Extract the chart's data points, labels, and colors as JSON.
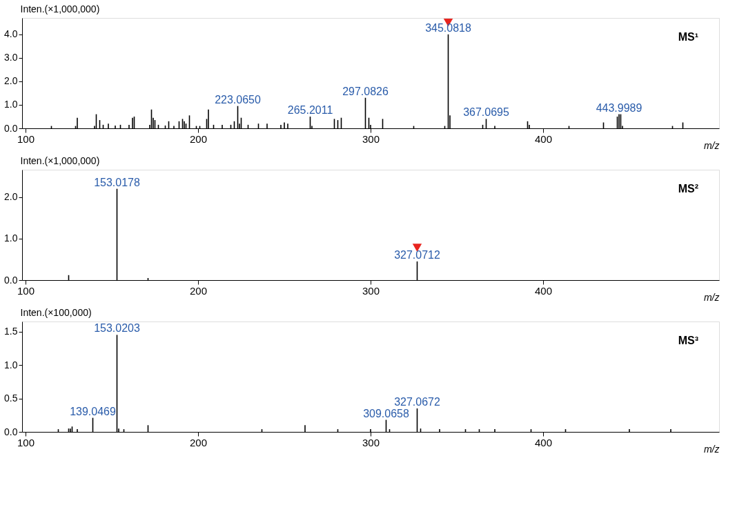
{
  "chart_data": [
    {
      "type": "bar",
      "ylabel": "Inten.(×1,000,000)",
      "xlabel": "m/z",
      "xlim": [
        100,
        500
      ],
      "xticks": [
        100,
        200,
        300,
        400
      ],
      "ylim": [
        0,
        4.7
      ],
      "yticks": [
        {
          "value": 0,
          "label": "0.0"
        },
        {
          "value": 1,
          "label": "1.0"
        },
        {
          "value": 2,
          "label": "2.0"
        },
        {
          "value": 3,
          "label": "3.0"
        },
        {
          "value": 4,
          "label": "4.0"
        }
      ],
      "grid": false,
      "series": [
        {
          "color": "#000000",
          "x": [
            115,
            129,
            130,
            140,
            141,
            143,
            145,
            148,
            152,
            155,
            160,
            162,
            163,
            172,
            173,
            174,
            175,
            177,
            181,
            183,
            186,
            189,
            191,
            192,
            193,
            195,
            199,
            201,
            205,
            206,
            209,
            214,
            219,
            221,
            223,
            224,
            225,
            229,
            235,
            240,
            248,
            250,
            252,
            265,
            266,
            279,
            281,
            283,
            297,
            299,
            300,
            307,
            325,
            343,
            345,
            346,
            365,
            367,
            372,
            391,
            392,
            415,
            435,
            443,
            444,
            445,
            446,
            475,
            481
          ],
          "values": [
            0.1,
            0.1,
            0.45,
            0.1,
            0.6,
            0.35,
            0.15,
            0.2,
            0.12,
            0.15,
            0.15,
            0.45,
            0.5,
            0.15,
            0.8,
            0.45,
            0.35,
            0.15,
            0.12,
            0.3,
            0.1,
            0.3,
            0.4,
            0.3,
            0.2,
            0.55,
            0.1,
            0.1,
            0.4,
            0.8,
            0.15,
            0.15,
            0.15,
            0.3,
            0.95,
            0.2,
            0.45,
            0.15,
            0.2,
            0.2,
            0.15,
            0.25,
            0.2,
            0.5,
            0.1,
            0.4,
            0.35,
            0.45,
            1.3,
            0.45,
            0.15,
            0.4,
            0.1,
            0.1,
            4.0,
            0.55,
            0.15,
            0.4,
            0.1,
            0.3,
            0.15,
            0.1,
            0.25,
            0.5,
            0.6,
            0.6,
            0.1,
            0.1,
            0.25
          ]
        },
        {
          "type": "scatter",
          "color": "#e8251f",
          "marker": "triangle",
          "x": [
            345
          ],
          "values": [
            4.5
          ]
        }
      ],
      "annotations": [
        {
          "text": "345.0818",
          "x": 345,
          "y": 4.0
        },
        {
          "text": "223.0650",
          "x": 223,
          "y": 0.95
        },
        {
          "text": "265.2011",
          "x": 265,
          "y": 0.5
        },
        {
          "text": "297.0826",
          "x": 297,
          "y": 1.3
        },
        {
          "text": "367.0695",
          "x": 367,
          "y": 0.4
        },
        {
          "text": "443.9989",
          "x": 444,
          "y": 0.6
        },
        "MS¹"
      ]
    },
    {
      "type": "bar",
      "ylabel": "Inten.(×1,000,000)",
      "xlabel": "m/z",
      "xlim": [
        100,
        500
      ],
      "xticks": [
        100,
        200,
        300,
        400
      ],
      "ylim": [
        0,
        2.66
      ],
      "yticks": [
        {
          "value": 0,
          "label": "0.0"
        },
        {
          "value": 1,
          "label": "1.0"
        },
        {
          "value": 2,
          "label": "2.0"
        }
      ],
      "grid": false,
      "series": [
        {
          "color": "#000000",
          "x": [
            125,
            153,
            171,
            327
          ],
          "values": [
            0.12,
            2.2,
            0.05,
            0.45
          ]
        },
        {
          "type": "scatter",
          "color": "#e8251f",
          "marker": "triangle",
          "x": [
            327
          ],
          "values": [
            0.78
          ]
        }
      ],
      "annotations": [
        {
          "text": "153.0178",
          "x": 153,
          "y": 2.2
        },
        {
          "text": "327.0712",
          "x": 327,
          "y": 0.45
        },
        "MS²"
      ]
    },
    {
      "type": "bar",
      "ylabel": "Inten.(×100,000)",
      "xlabel": "m/z",
      "xlim": [
        100,
        500
      ],
      "xticks": [
        100,
        200,
        300,
        400
      ],
      "ylim": [
        0,
        1.65
      ],
      "yticks": [
        {
          "value": 0,
          "label": "0.0"
        },
        {
          "value": 0.5,
          "label": "0.5"
        },
        {
          "value": 1,
          "label": "1.0"
        },
        {
          "value": 1.5,
          "label": "1.5"
        }
      ],
      "grid": false,
      "series": [
        {
          "color": "#000000",
          "x": [
            119,
            125,
            126,
            127,
            130,
            139,
            153,
            154,
            157,
            171,
            237,
            262,
            281,
            300,
            309,
            311,
            327,
            329,
            340,
            355,
            363,
            372,
            393,
            413,
            450,
            474
          ],
          "values": [
            0.04,
            0.05,
            0.05,
            0.08,
            0.04,
            0.21,
            1.45,
            0.05,
            0.04,
            0.1,
            0.04,
            0.1,
            0.04,
            0.04,
            0.18,
            0.04,
            0.35,
            0.05,
            0.04,
            0.04,
            0.04,
            0.04,
            0.04,
            0.04,
            0.04,
            0.04
          ]
        }
      ],
      "annotations": [
        {
          "text": "153.0203",
          "x": 153,
          "y": 1.45
        },
        {
          "text": "139.0469",
          "x": 139,
          "y": 0.21
        },
        {
          "text": "309.0658",
          "x": 309,
          "y": 0.18
        },
        {
          "text": "327.0672",
          "x": 327,
          "y": 0.35
        },
        "MS³"
      ]
    }
  ]
}
